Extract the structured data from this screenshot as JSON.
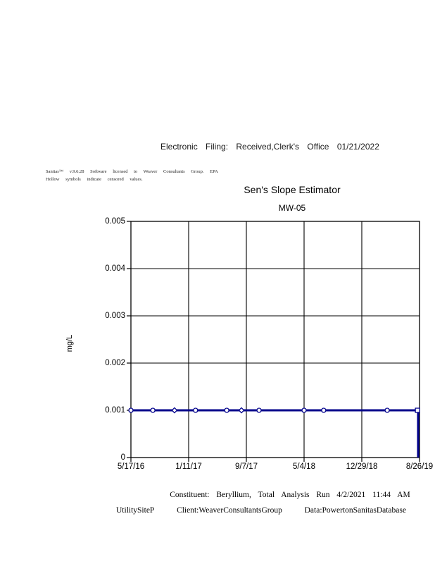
{
  "page": {
    "header": "Electronic Filing: Received,Clerk's Office 01/21/2022",
    "fine_print_line1": "Sanitas™ v.9.6.28 Software licensed to Weaver Consultants Group. EPA",
    "fine_print_line2": "Hollow symbols indicate censored values.",
    "footer": {
      "constituent_line": "Constituent: Beryllium, Total Analysis Run 4/2/2021 11:44 AM",
      "site": "UtilitySiteP",
      "client": "Client:WeaverConsultantsGroup",
      "data_source": "Data:PowertonSanitasDatabase"
    }
  },
  "chart_data": {
    "type": "line",
    "title": "Sen's Slope Estimator",
    "subtitle": "MW-05",
    "ylabel": "mg/L",
    "xlabel": "",
    "ylim": [
      0,
      0.005
    ],
    "ytick_labels": [
      "0",
      "0.001",
      "0.002",
      "0.003",
      "0.004",
      "0.005"
    ],
    "xtick_labels": [
      "5/17/16",
      "1/11/17",
      "9/7/17",
      "5/4/18",
      "12/29/18",
      "8/26/19"
    ],
    "grid": true,
    "legend": "none",
    "series": [
      {
        "name": "Beryllium, Total (MW-05)",
        "color": "#00008B",
        "constant_value_mgL": 0.001,
        "ends_with_vertical_drop_to_zero": true,
        "points": [
          {
            "x_frac": 0.0,
            "value": 0.001,
            "marker": "circle",
            "hollow": true
          },
          {
            "x_frac": 0.076,
            "value": 0.001,
            "marker": "circle",
            "hollow": true
          },
          {
            "x_frac": 0.151,
            "value": 0.001,
            "marker": "diamond",
            "hollow": true
          },
          {
            "x_frac": 0.224,
            "value": 0.001,
            "marker": "circle",
            "hollow": true
          },
          {
            "x_frac": 0.332,
            "value": 0.001,
            "marker": "circle",
            "hollow": true
          },
          {
            "x_frac": 0.383,
            "value": 0.001,
            "marker": "diamond",
            "hollow": true
          },
          {
            "x_frac": 0.444,
            "value": 0.001,
            "marker": "circle",
            "hollow": true
          },
          {
            "x_frac": 0.6,
            "value": 0.001,
            "marker": "circle",
            "hollow": true
          },
          {
            "x_frac": 0.668,
            "value": 0.001,
            "marker": "circle",
            "hollow": true
          },
          {
            "x_frac": 0.888,
            "value": 0.001,
            "marker": "circle",
            "hollow": true
          },
          {
            "x_frac": 0.993,
            "value": 0.001,
            "marker": "square",
            "hollow": true
          }
        ]
      }
    ],
    "axis_color": "#000000"
  }
}
